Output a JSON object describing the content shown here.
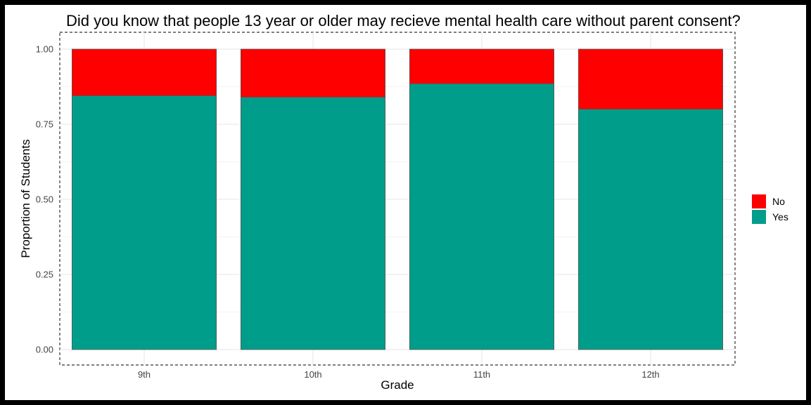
{
  "chart_data": {
    "type": "bar",
    "stacked": true,
    "title": "Did you know that people 13 year or older may recieve mental health care without parent consent?",
    "xlabel": "Grade",
    "ylabel": "Proportion of Students",
    "categories": [
      "9th",
      "10th",
      "11th",
      "12th"
    ],
    "series": [
      {
        "name": "Yes",
        "color": "#009E8A",
        "values": [
          0.845,
          0.84,
          0.885,
          0.8
        ]
      },
      {
        "name": "No",
        "color": "#FF0000",
        "values": [
          0.155,
          0.16,
          0.115,
          0.2
        ]
      }
    ],
    "ylim": [
      0,
      1
    ],
    "yticks": [
      0,
      0.25,
      0.5,
      0.75,
      1
    ],
    "ytick_labels": [
      "0.00",
      "0.25",
      "0.50",
      "0.75",
      "1.00"
    ],
    "legend": {
      "placement": "right",
      "entries": [
        "No",
        "Yes"
      ]
    },
    "grid": true
  }
}
